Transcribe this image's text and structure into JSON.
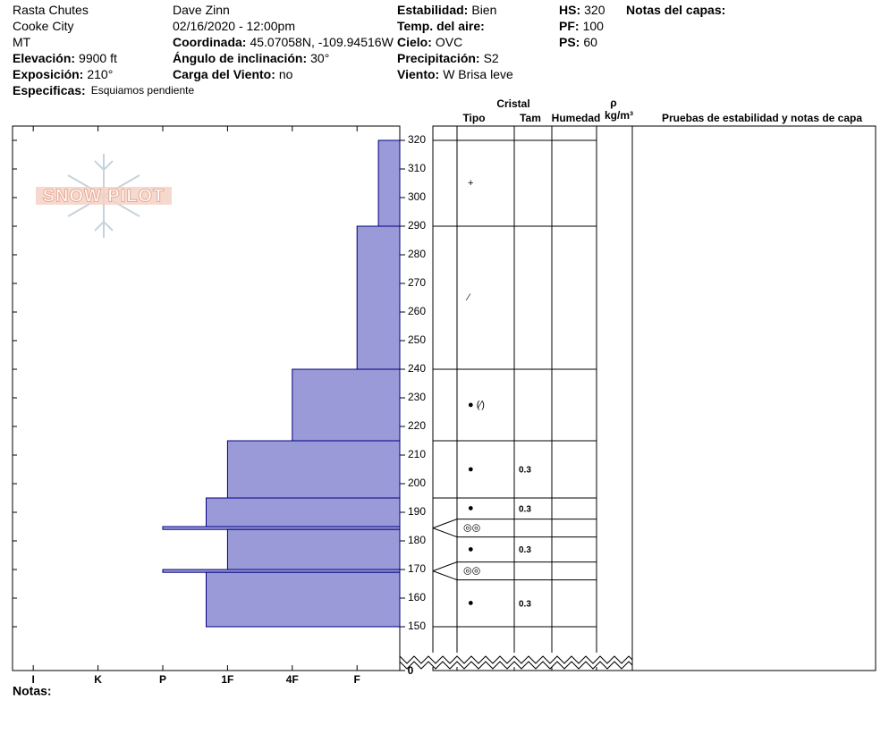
{
  "header": {
    "columns": [
      [
        {
          "text": "Rasta Chutes"
        },
        {
          "text": "Cooke City"
        },
        {
          "text": "MT"
        },
        {
          "label": "Elevación:",
          "value": "9900 ft"
        },
        {
          "label": "Exposición:",
          "value": "210°"
        },
        {
          "label": "Especificas:",
          "value": "Esquiamos pendiente"
        }
      ],
      [
        {
          "text": "Dave Zinn"
        },
        {
          "text": "02/16/2020 - 12:00pm"
        },
        {
          "label": "Coordinada:",
          "value": "45.07058N, -109.94516W"
        },
        {
          "label": "Ángulo de inclinación:",
          "value": "30°"
        },
        {
          "label": "Carga del Viento:",
          "value": "no"
        }
      ],
      [
        {
          "label": "Estabilidad:",
          "value": "Bien"
        },
        {
          "label": "Temp. del aire:"
        },
        {
          "label": "Cielo:",
          "value": "OVC"
        },
        {
          "label": "Precipitación:",
          "value": "S2"
        },
        {
          "label": "Viento:",
          "value": "W Brisa leve"
        }
      ],
      [
        {
          "label": "HS:",
          "value": 320
        },
        {
          "label": "PF:",
          "value": 100
        },
        {
          "label": "PS:",
          "value": 60
        }
      ],
      [
        {
          "label": "Notas del capas:"
        }
      ]
    ]
  },
  "logo": "SNOW PILOT",
  "table_header": {
    "crystal": "Cristal",
    "type": "Tipo",
    "size": "Tam",
    "moisture": "Humedad",
    "rho": "ρ",
    "density": "kg/m³",
    "tests": "Pruebas de estabilidad y notas de capa"
  },
  "notes_label": "Notas:",
  "chart_data": {
    "type": "bar",
    "color": "#9a9ad8",
    "edge_color": "#000080",
    "ylim": [
      150,
      325
    ],
    "yticks": [
      150,
      160,
      170,
      180,
      190,
      200,
      210,
      220,
      230,
      240,
      250,
      260,
      270,
      280,
      290,
      300,
      310,
      320
    ],
    "break_tick": 0,
    "xlim": [
      0.68,
      6.66
    ],
    "xticks": [
      {
        "value": 1,
        "label": "I"
      },
      {
        "value": 2,
        "label": "K"
      },
      {
        "value": 3,
        "label": "P"
      },
      {
        "value": 4,
        "label": "1F"
      },
      {
        "value": 5,
        "label": "4F"
      },
      {
        "value": 6,
        "label": "F"
      }
    ],
    "layers": [
      {
        "top": 320,
        "bottom": 290,
        "hardness": 6.33,
        "grain": "+"
      },
      {
        "top": 290,
        "bottom": 240,
        "hardness": 6,
        "grain": "⁄"
      },
      {
        "top": 240,
        "bottom": 215,
        "hardness": 5,
        "grain": "●  (⁄)"
      },
      {
        "top": 215,
        "bottom": 195,
        "hardness": 4,
        "grain": "●",
        "size": "0.3"
      },
      {
        "top": 195,
        "bottom": 185,
        "hardness": 3.67,
        "grain": "●",
        "size": "0.3"
      },
      {
        "top": 185,
        "bottom": 184,
        "hardness": 3,
        "grain": "◎◎"
      },
      {
        "top": 184,
        "bottom": 170,
        "hardness": 4,
        "grain": "●",
        "size": "0.3"
      },
      {
        "top": 170,
        "bottom": 169,
        "hardness": 3,
        "grain": "◎◎"
      },
      {
        "top": 169,
        "bottom": 150,
        "hardness": 3.67,
        "grain": "●",
        "size": "0.3"
      }
    ]
  }
}
